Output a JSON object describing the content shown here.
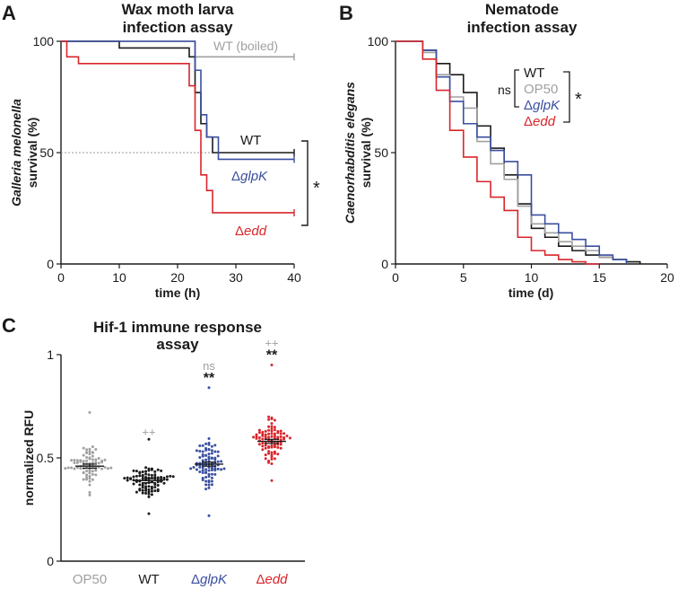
{
  "colors": {
    "black": "#1a1a1a",
    "gray": "#a0a0a0",
    "blue": "#3a4fa0",
    "red": "#d8262b",
    "WT": "#1a1a1a",
    "OP50": "#a0a0a0",
    "glpK": "#3a4fa0",
    "edd": "#d8262b"
  },
  "chart_data": [
    {
      "panel": "A",
      "type": "line",
      "title": "Wax moth larva\ninfection assay",
      "xlabel": "time (h)",
      "ylabel_italic": "Galleria melonella",
      "ylabel": "survival (%)",
      "xlim": [
        0,
        40
      ],
      "ylim": [
        0,
        100
      ],
      "xticks": [
        0,
        10,
        20,
        30,
        40
      ],
      "yticks": [
        0,
        50,
        100
      ],
      "reference_line_y": 50,
      "significance": "*",
      "series": [
        {
          "name": "WT (boiled)",
          "key": "boiled",
          "color": "#a0a0a0",
          "x": [
            0,
            21,
            23,
            40
          ],
          "y": [
            100,
            100,
            93,
            93
          ]
        },
        {
          "name": "WT",
          "key": "WT",
          "color": "#1a1a1a",
          "x": [
            0,
            10,
            22,
            23,
            24,
            25,
            26,
            40
          ],
          "y": [
            100,
            97,
            93,
            77,
            63,
            57,
            50,
            50
          ]
        },
        {
          "name": "ΔglpK",
          "key": "glpK",
          "color": "#3a4fa0",
          "x": [
            0,
            19,
            23,
            24,
            25,
            27,
            40
          ],
          "y": [
            100,
            100,
            87,
            67,
            57,
            47,
            47
          ]
        },
        {
          "name": "Δedd",
          "key": "edd",
          "color": "#d8262b",
          "x": [
            0,
            1,
            3,
            19,
            22,
            23,
            24,
            25,
            26,
            40
          ],
          "y": [
            100,
            93,
            90,
            90,
            80,
            60,
            40,
            33,
            23,
            23
          ]
        }
      ]
    },
    {
      "panel": "B",
      "type": "line",
      "title": "Nematode\ninfection assay",
      "xlabel": "time (d)",
      "ylabel_italic": "Caenorhabditis elegans",
      "ylabel": "survival (%)",
      "xlim": [
        0,
        20
      ],
      "ylim": [
        0,
        100
      ],
      "xticks": [
        0,
        5,
        10,
        15,
        20
      ],
      "yticks": [
        0,
        50,
        100
      ],
      "legend": [
        "WT",
        "OP50",
        "ΔglpK",
        "Δedd"
      ],
      "ns_label": "ns",
      "significance": "*",
      "series": [
        {
          "name": "WT",
          "key": "WT",
          "color": "#1a1a1a",
          "x": [
            0,
            1,
            2,
            3,
            4,
            5,
            6,
            7,
            8,
            9,
            10,
            11,
            12,
            13,
            14,
            15,
            16,
            17,
            18
          ],
          "y": [
            100,
            100,
            96,
            90,
            85,
            77,
            62,
            52,
            40,
            27,
            16,
            12,
            8,
            6,
            4,
            3,
            2,
            1,
            0
          ]
        },
        {
          "name": "OP50",
          "key": "OP50",
          "color": "#a0a0a0",
          "x": [
            0,
            1,
            2,
            3,
            4,
            5,
            6,
            7,
            8,
            9,
            10,
            11,
            12,
            13,
            14,
            15,
            16,
            17
          ],
          "y": [
            100,
            100,
            95,
            85,
            75,
            70,
            55,
            45,
            38,
            26,
            18,
            14,
            10,
            8,
            6,
            3,
            2,
            0
          ]
        },
        {
          "name": "ΔglpK",
          "key": "glpK",
          "color": "#3a4fa0",
          "x": [
            0,
            1,
            2,
            3,
            4,
            5,
            6,
            7,
            8,
            9,
            10,
            11,
            12,
            13,
            14,
            15,
            16,
            17
          ],
          "y": [
            100,
            100,
            96,
            84,
            73,
            63,
            57,
            51,
            46,
            40,
            22,
            18,
            14,
            11,
            8,
            4,
            2,
            0
          ]
        },
        {
          "name": "Δedd",
          "key": "edd",
          "color": "#d8262b",
          "x": [
            0,
            1,
            2,
            3,
            4,
            5,
            6,
            7,
            8,
            9,
            10,
            11,
            12,
            13,
            14,
            15
          ],
          "y": [
            100,
            100,
            92,
            78,
            60,
            48,
            37,
            30,
            24,
            12,
            6,
            4,
            2,
            1,
            0,
            0
          ]
        }
      ]
    },
    {
      "panel": "C",
      "type": "scatter",
      "title": "Hif-1 immune response\nassay",
      "ylabel": "normalized RFU",
      "ylim": [
        0,
        1
      ],
      "yticks": [
        0,
        0.5,
        1
      ],
      "categories": [
        "OP50",
        "WT",
        "ΔglpK",
        "Δedd"
      ],
      "category_keys": [
        "OP50",
        "WT",
        "glpK",
        "edd"
      ],
      "n_per_group": [
        80,
        90,
        90,
        90
      ],
      "means": [
        0.46,
        0.39,
        0.47,
        0.58
      ],
      "sem": [
        0.01,
        0.01,
        0.01,
        0.01
      ],
      "ranges": [
        [
          0.32,
          0.72
        ],
        [
          0.23,
          0.59
        ],
        [
          0.22,
          0.84
        ],
        [
          0.39,
          0.95
        ]
      ],
      "annotations_gray": [
        "",
        "++",
        "ns",
        "++"
      ],
      "annotations_black": [
        "",
        "",
        "**",
        "**"
      ]
    }
  ]
}
